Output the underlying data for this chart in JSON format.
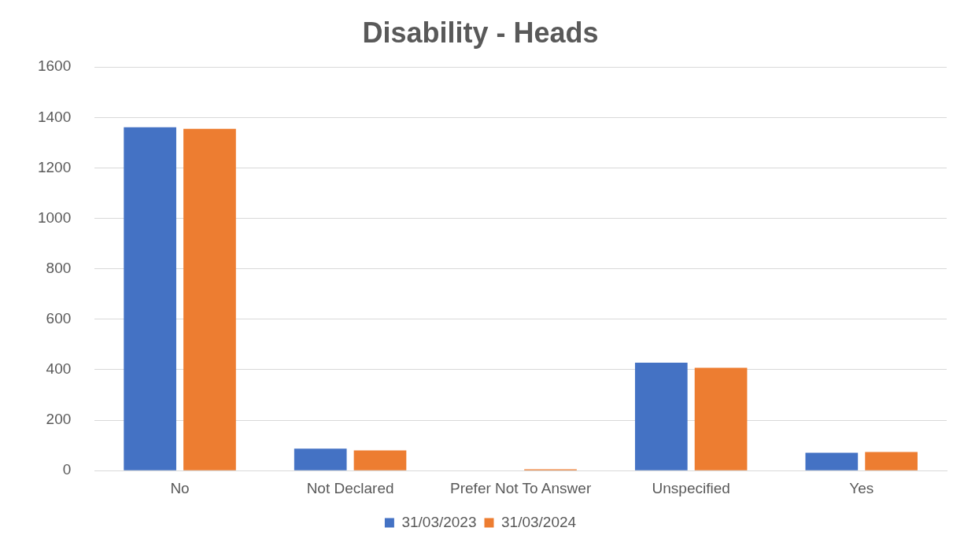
{
  "chart_data": {
    "type": "bar",
    "title": "Disability - Heads",
    "categories": [
      "No",
      "Not Declared",
      "Prefer Not To Answer",
      "Unspecified",
      "Yes"
    ],
    "series": [
      {
        "name": "31/03/2023",
        "color": "#4472c4",
        "values": [
          1361,
          87,
          0,
          428,
          71
        ]
      },
      {
        "name": "31/03/2024",
        "color": "#ed7d31",
        "values": [
          1355,
          80,
          5,
          408,
          74
        ]
      }
    ],
    "ylim": [
      0,
      1600
    ],
    "yticks": [
      0,
      200,
      400,
      600,
      800,
      1000,
      1200,
      1400,
      1600
    ],
    "grid": "y",
    "legend": "bottom"
  }
}
